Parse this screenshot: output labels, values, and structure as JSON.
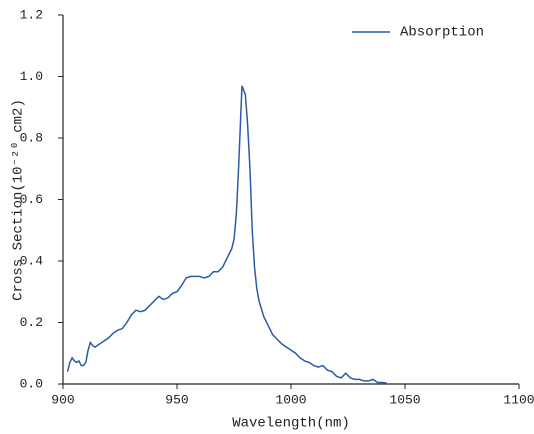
{
  "chart_data": {
    "type": "line",
    "x_label": "Wavelength(nm)",
    "y_label": "Cross Section(10⁻²⁰ cm2)",
    "x": [
      902,
      903,
      904,
      905,
      906,
      907,
      908,
      909,
      910,
      911,
      912,
      913,
      914,
      916,
      918,
      920,
      922,
      924,
      926,
      928,
      930,
      932,
      934,
      936,
      938,
      940,
      942,
      944,
      946,
      948,
      950,
      952,
      954,
      956,
      958,
      960,
      962,
      964,
      966,
      968,
      970,
      972,
      974,
      975,
      976,
      977,
      978,
      978.5,
      979,
      980,
      981,
      982,
      983,
      984,
      985,
      986,
      988,
      990,
      992,
      994,
      996,
      998,
      1000,
      1002,
      1004,
      1006,
      1008,
      1010,
      1012,
      1014,
      1016,
      1018,
      1020,
      1022,
      1024,
      1026,
      1028,
      1030,
      1032,
      1034,
      1036,
      1038,
      1040,
      1042
    ],
    "series": [
      {
        "name": "Absorption",
        "color": "#2b5aa6",
        "values": [
          0.04,
          0.07,
          0.085,
          0.075,
          0.07,
          0.075,
          0.06,
          0.06,
          0.07,
          0.11,
          0.135,
          0.125,
          0.12,
          0.13,
          0.14,
          0.15,
          0.165,
          0.175,
          0.18,
          0.2,
          0.225,
          0.24,
          0.235,
          0.24,
          0.255,
          0.27,
          0.285,
          0.275,
          0.28,
          0.295,
          0.3,
          0.32,
          0.345,
          0.35,
          0.35,
          0.35,
          0.345,
          0.35,
          0.365,
          0.365,
          0.38,
          0.41,
          0.44,
          0.47,
          0.55,
          0.7,
          0.88,
          0.97,
          0.96,
          0.94,
          0.84,
          0.7,
          0.5,
          0.38,
          0.31,
          0.27,
          0.22,
          0.19,
          0.16,
          0.145,
          0.13,
          0.12,
          0.11,
          0.1,
          0.085,
          0.075,
          0.07,
          0.06,
          0.055,
          0.06,
          0.045,
          0.04,
          0.025,
          0.02,
          0.035,
          0.02,
          0.015,
          0.015,
          0.01,
          0.01,
          0.015,
          0.005,
          0.005,
          0.003
        ]
      }
    ],
    "xlim": [
      900,
      1100
    ],
    "xticks": [
      900,
      950,
      1000,
      1050,
      1100
    ],
    "ylim": [
      0,
      1.2
    ],
    "yticks": [
      {
        "value": 0,
        "label": "0.0"
      },
      0.2,
      0.4,
      0.6,
      0.8,
      {
        "value": 1,
        "label": "1.0"
      },
      1.2
    ],
    "legend": "upper right"
  }
}
